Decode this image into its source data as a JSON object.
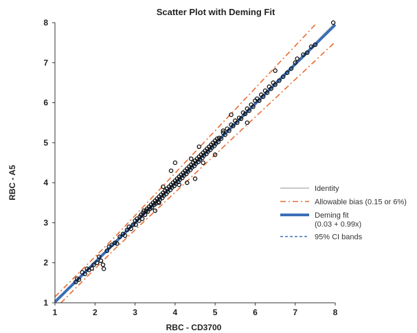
{
  "chart_data": {
    "type": "scatter",
    "title": "Scatter Plot with Deming Fit",
    "xlabel": "RBC   - CD3700",
    "ylabel": "RBC   - A5",
    "xlim": [
      1,
      8
    ],
    "ylim": [
      1,
      8
    ],
    "xticks": [
      "1",
      "2",
      "3",
      "4",
      "5",
      "6",
      "7",
      "8"
    ],
    "yticks": [
      "1",
      "2",
      "3",
      "4",
      "5",
      "6",
      "7",
      "8"
    ],
    "grid": false,
    "legend_position": "right",
    "legend": [
      {
        "label": "Identity",
        "style": "solid",
        "color": "#c8c8c8"
      },
      {
        "label": "Allowable bias (0.15 or 6%)",
        "style": "dash-dot",
        "color": "#e8692c"
      },
      {
        "label": "Deming fit",
        "sublabel": "(0.03 + 0.99x)",
        "style": "solid-thick",
        "color": "#3b6fb6"
      },
      {
        "label": "95% CI bands",
        "style": "dashed",
        "color": "#3b6fb6"
      }
    ],
    "deming_fit": {
      "intercept": 0.03,
      "slope": 0.99
    },
    "allowable_bias": {
      "absolute": 0.15,
      "relative": 0.06
    },
    "points": [
      [
        1.52,
        1.52
      ],
      [
        1.55,
        1.6
      ],
      [
        1.6,
        1.58
      ],
      [
        1.68,
        1.76
      ],
      [
        1.75,
        1.72
      ],
      [
        1.8,
        1.85
      ],
      [
        1.85,
        1.82
      ],
      [
        1.92,
        1.86
      ],
      [
        1.97,
        1.95
      ],
      [
        2.05,
        2.0
      ],
      [
        2.1,
        2.15
      ],
      [
        2.15,
        2.05
      ],
      [
        2.2,
        1.95
      ],
      [
        2.22,
        1.85
      ],
      [
        2.3,
        2.3
      ],
      [
        2.35,
        2.4
      ],
      [
        2.42,
        2.45
      ],
      [
        2.5,
        2.5
      ],
      [
        2.55,
        2.48
      ],
      [
        2.62,
        2.65
      ],
      [
        2.7,
        2.72
      ],
      [
        2.75,
        2.68
      ],
      [
        2.8,
        2.82
      ],
      [
        2.85,
        2.9
      ],
      [
        2.9,
        2.85
      ],
      [
        2.95,
        2.95
      ],
      [
        3.0,
        3.05
      ],
      [
        3.02,
        2.95
      ],
      [
        3.05,
        3.1
      ],
      [
        3.1,
        3.05
      ],
      [
        3.12,
        3.15
      ],
      [
        3.15,
        3.2
      ],
      [
        3.18,
        3.1
      ],
      [
        3.2,
        3.25
      ],
      [
        3.22,
        3.3
      ],
      [
        3.25,
        3.2
      ],
      [
        3.28,
        3.3
      ],
      [
        3.3,
        3.35
      ],
      [
        3.32,
        3.28
      ],
      [
        3.35,
        3.4
      ],
      [
        3.38,
        3.35
      ],
      [
        3.4,
        3.45
      ],
      [
        3.42,
        3.38
      ],
      [
        3.45,
        3.5
      ],
      [
        3.48,
        3.45
      ],
      [
        3.5,
        3.55
      ],
      [
        3.52,
        3.48
      ],
      [
        3.55,
        3.6
      ],
      [
        3.58,
        3.52
      ],
      [
        3.6,
        3.65
      ],
      [
        3.62,
        3.58
      ],
      [
        3.65,
        3.7
      ],
      [
        3.68,
        3.62
      ],
      [
        3.7,
        3.75
      ],
      [
        3.72,
        3.68
      ],
      [
        3.75,
        3.8
      ],
      [
        3.78,
        3.72
      ],
      [
        3.8,
        3.85
      ],
      [
        3.82,
        3.78
      ],
      [
        3.85,
        3.9
      ],
      [
        3.88,
        3.82
      ],
      [
        3.9,
        3.95
      ],
      [
        3.92,
        3.88
      ],
      [
        3.95,
        4.0
      ],
      [
        3.98,
        3.92
      ],
      [
        4.0,
        4.05
      ],
      [
        4.02,
        3.98
      ],
      [
        4.05,
        4.1
      ],
      [
        4.08,
        4.02
      ],
      [
        4.1,
        4.15
      ],
      [
        4.12,
        4.08
      ],
      [
        4.15,
        4.2
      ],
      [
        4.18,
        4.12
      ],
      [
        4.2,
        4.25
      ],
      [
        4.22,
        4.18
      ],
      [
        4.25,
        4.3
      ],
      [
        4.28,
        4.22
      ],
      [
        4.3,
        4.35
      ],
      [
        4.32,
        4.28
      ],
      [
        4.35,
        4.4
      ],
      [
        4.38,
        4.32
      ],
      [
        4.4,
        4.45
      ],
      [
        4.42,
        4.38
      ],
      [
        4.45,
        4.5
      ],
      [
        4.48,
        4.42
      ],
      [
        4.5,
        4.55
      ],
      [
        4.52,
        4.48
      ],
      [
        4.55,
        4.6
      ],
      [
        4.58,
        4.52
      ],
      [
        4.6,
        4.65
      ],
      [
        4.62,
        4.58
      ],
      [
        4.65,
        4.7
      ],
      [
        4.68,
        4.62
      ],
      [
        4.7,
        4.75
      ],
      [
        4.72,
        4.68
      ],
      [
        4.75,
        4.8
      ],
      [
        4.78,
        4.72
      ],
      [
        4.8,
        4.85
      ],
      [
        4.82,
        4.78
      ],
      [
        4.85,
        4.9
      ],
      [
        4.88,
        4.82
      ],
      [
        4.9,
        4.95
      ],
      [
        4.92,
        4.88
      ],
      [
        4.95,
        5.0
      ],
      [
        4.98,
        4.92
      ],
      [
        5.0,
        5.05
      ],
      [
        5.02,
        4.98
      ],
      [
        5.05,
        5.1
      ],
      [
        5.08,
        5.02
      ],
      [
        5.1,
        5.12
      ],
      [
        5.15,
        5.1
      ],
      [
        5.2,
        5.25
      ],
      [
        5.25,
        5.2
      ],
      [
        5.3,
        5.35
      ],
      [
        5.35,
        5.3
      ],
      [
        5.4,
        5.45
      ],
      [
        5.45,
        5.42
      ],
      [
        5.5,
        5.55
      ],
      [
        5.55,
        5.5
      ],
      [
        5.6,
        5.62
      ],
      [
        5.65,
        5.6
      ],
      [
        5.7,
        5.75
      ],
      [
        5.75,
        5.72
      ],
      [
        5.8,
        5.85
      ],
      [
        5.85,
        5.8
      ],
      [
        5.9,
        5.95
      ],
      [
        5.95,
        5.9
      ],
      [
        6.0,
        6.05
      ],
      [
        6.05,
        6.1
      ],
      [
        6.1,
        6.05
      ],
      [
        6.15,
        6.2
      ],
      [
        6.2,
        6.15
      ],
      [
        6.25,
        6.3
      ],
      [
        6.3,
        6.25
      ],
      [
        6.35,
        6.4
      ],
      [
        6.4,
        6.35
      ],
      [
        6.45,
        6.5
      ],
      [
        6.5,
        6.45
      ],
      [
        6.6,
        6.55
      ],
      [
        6.7,
        6.65
      ],
      [
        6.8,
        6.75
      ],
      [
        6.9,
        6.85
      ],
      [
        7.0,
        7.0
      ],
      [
        7.05,
        7.1
      ],
      [
        7.2,
        7.2
      ],
      [
        7.3,
        7.25
      ],
      [
        7.4,
        7.4
      ],
      [
        7.5,
        7.45
      ],
      [
        7.95,
        8.0
      ],
      [
        3.5,
        3.3
      ],
      [
        3.9,
        4.3
      ],
      [
        4.3,
        4.0
      ],
      [
        4.6,
        4.9
      ],
      [
        5.0,
        4.7
      ],
      [
        5.4,
        5.7
      ],
      [
        5.8,
        5.5
      ],
      [
        6.5,
        6.8
      ],
      [
        4.0,
        4.5
      ],
      [
        4.5,
        4.1
      ],
      [
        3.7,
        3.9
      ],
      [
        4.7,
        4.5
      ],
      [
        5.2,
        5.3
      ],
      [
        4.1,
        3.95
      ],
      [
        3.6,
        3.5
      ],
      [
        4.4,
        4.6
      ]
    ]
  }
}
